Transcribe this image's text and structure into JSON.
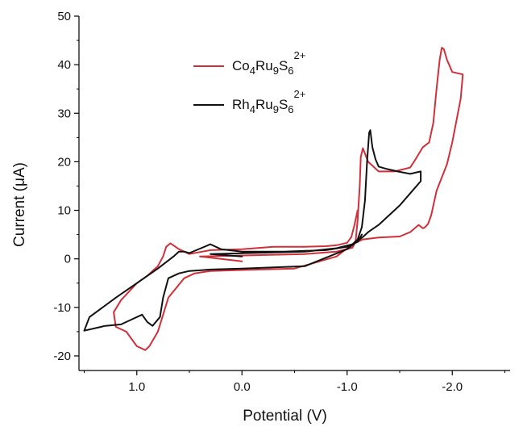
{
  "chart_data": {
    "type": "line",
    "title": "",
    "xlabel": "Potential (V)",
    "ylabel": "Current (μA)",
    "x_axis_reversed": true,
    "xlim": [
      1.55,
      -2.55
    ],
    "ylim": [
      -23,
      50
    ],
    "x_ticks": [
      1.0,
      0.0,
      -1.0,
      -2.0
    ],
    "x_tick_labels": [
      "1.0",
      "0.0",
      "-1.0",
      "-2.0"
    ],
    "y_ticks": [
      -20,
      -10,
      0,
      10,
      20,
      30,
      40,
      50
    ],
    "y_tick_labels": [
      "-20",
      "-10",
      "0",
      "10",
      "20",
      "30",
      "40",
      "50"
    ],
    "grid": false,
    "legend_position": "top-center",
    "series": [
      {
        "name_parts": [
          [
            "Co",
            ""
          ],
          [
            "4",
            "sub"
          ],
          [
            "Ru",
            ""
          ],
          [
            "9",
            "sub"
          ],
          [
            "S",
            ""
          ],
          [
            "6",
            "sub"
          ],
          [
            "2+",
            "sup"
          ]
        ],
        "color": "#d0303a",
        "x": [
          0.0,
          0.4,
          -0.6,
          -0.9,
          -1.05,
          -1.08,
          -1.1,
          -1.12,
          -1.13,
          -1.15,
          -1.2,
          -1.3,
          -1.45,
          -1.6,
          -1.65,
          -1.72,
          -1.78,
          -1.82,
          -1.85,
          -1.88,
          -1.9,
          -1.92,
          -1.95,
          -2.0,
          -2.1,
          -2.08,
          -2.0,
          -1.95,
          -1.85,
          -1.8,
          -1.77,
          -1.74,
          -1.72,
          -1.68,
          -1.6,
          -1.5,
          -1.3,
          -1.15,
          -1.05,
          -0.9,
          -0.5,
          0.0,
          0.3,
          0.45,
          0.55,
          0.7,
          0.8,
          0.88,
          0.92,
          1.0,
          1.1,
          1.2,
          1.22,
          1.15,
          1.0,
          0.9,
          0.85,
          0.8,
          0.75,
          0.72,
          0.68,
          0.6,
          0.5,
          0.3,
          0.0,
          -0.3,
          -0.6,
          -0.8,
          -0.9,
          -1.0,
          -1.04,
          -1.07,
          -1.1
        ],
        "y": [
          -0.5,
          0.5,
          1.0,
          1.5,
          2.3,
          3.5,
          8.0,
          15.0,
          21.0,
          22.8,
          20.0,
          18.0,
          18.0,
          18.8,
          20.5,
          23.0,
          24.0,
          28.0,
          35.0,
          41.0,
          43.5,
          43.2,
          41.0,
          38.5,
          38.0,
          33.0,
          24.0,
          19.5,
          14.0,
          9.0,
          7.2,
          6.5,
          6.3,
          7.0,
          5.5,
          4.6,
          4.4,
          4.0,
          3.0,
          0.5,
          -2.0,
          -2.3,
          -2.5,
          -3.0,
          -4.0,
          -8.0,
          -15.0,
          -18.0,
          -18.8,
          -18.0,
          -15.0,
          -14.0,
          -11.0,
          -8.5,
          -5.0,
          -3.5,
          -2.5,
          -1.5,
          0.5,
          2.5,
          3.2,
          2.0,
          1.0,
          1.8,
          2.0,
          2.5,
          2.5,
          2.6,
          2.8,
          3.3,
          4.5,
          7.0,
          10.0
        ]
      },
      {
        "name_parts": [
          [
            "Rh",
            ""
          ],
          [
            "4",
            "sub"
          ],
          [
            "Ru",
            ""
          ],
          [
            "9",
            "sub"
          ],
          [
            "S",
            ""
          ],
          [
            "6",
            "sub"
          ],
          [
            "2+",
            "sup"
          ]
        ],
        "color": "#111111",
        "x": [
          0.0,
          0.3,
          -0.6,
          -0.9,
          -1.05,
          -1.1,
          -1.14,
          -1.17,
          -1.19,
          -1.21,
          -1.22,
          -1.24,
          -1.27,
          -1.3,
          -1.38,
          -1.48,
          -1.6,
          -1.7,
          -1.7,
          -1.5,
          -1.3,
          -1.2,
          -1.15,
          -1.0,
          -0.6,
          0.0,
          0.3,
          0.5,
          0.6,
          0.7,
          0.75,
          0.78,
          0.85,
          0.9,
          0.95,
          1.05,
          1.15,
          1.3,
          1.5,
          1.45,
          1.2,
          1.0,
          0.8,
          0.65,
          0.6,
          0.55,
          0.5,
          0.3,
          0.2,
          0.0,
          -0.4,
          -0.8,
          -1.0,
          -1.1,
          -1.14
        ],
        "y": [
          0.5,
          1.0,
          1.5,
          2.2,
          3.0,
          4.0,
          6.5,
          12.0,
          20.0,
          26.0,
          26.5,
          23.0,
          20.5,
          19.0,
          18.5,
          18.0,
          17.5,
          18.0,
          16.0,
          11.0,
          7.0,
          5.5,
          4.5,
          2.0,
          -1.5,
          -2.0,
          -2.2,
          -2.5,
          -3.0,
          -4.0,
          -8.0,
          -12.0,
          -13.8,
          -13.0,
          -11.5,
          -12.5,
          -13.5,
          -13.8,
          -14.8,
          -12.0,
          -8.0,
          -5.0,
          -2.0,
          0.5,
          1.5,
          1.5,
          1.2,
          3.0,
          2.0,
          1.5,
          1.5,
          1.8,
          2.5,
          3.5,
          5.0
        ]
      }
    ]
  }
}
